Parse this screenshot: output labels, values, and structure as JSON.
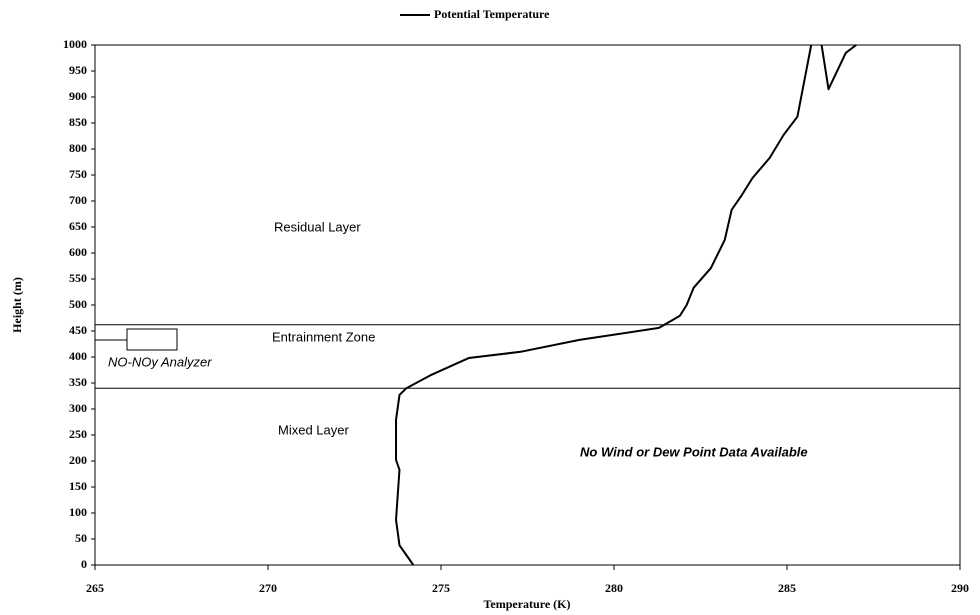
{
  "chart_data": {
    "type": "line",
    "legend": "Potential Temperature",
    "xlabel": "Temperature (K)",
    "ylabel": "Height (m)",
    "x": [
      274.2,
      273.8,
      273.7,
      273.8,
      273.7,
      273.7,
      273.8,
      274.0,
      274.7,
      275.8,
      277.3,
      279.0,
      281.3,
      281.9,
      282.1,
      282.3,
      282.8,
      283.2,
      283.4,
      283.7,
      284.0,
      284.5,
      284.9,
      285.3,
      285.7,
      285.8,
      286.0,
      286.2,
      286.7,
      287.0
    ],
    "series": [
      {
        "name": "Potential Temperature",
        "color": "#000000",
        "values": [
          0,
          38,
          87,
          183,
          202,
          279,
          327,
          340,
          365,
          398,
          410,
          433,
          456,
          479,
          500,
          533,
          571,
          625,
          683,
          712,
          744,
          783,
          827,
          862,
          1000,
          null,
          1000,
          915,
          985,
          1000
        ]
      }
    ],
    "layer_boundaries": [
      462,
      340
    ],
    "annotations": [
      "Residual Layer",
      "Entrainment Zone",
      "Mixed Layer",
      "NO-NOy Analyzer",
      "No Wind or Dew Point Data Available"
    ],
    "xlim": [
      265,
      290
    ],
    "xticks": [
      265,
      270,
      275,
      280,
      285,
      290
    ],
    "ylim": [
      0,
      1000
    ],
    "yticks": [
      0,
      50,
      100,
      150,
      200,
      250,
      300,
      350,
      400,
      450,
      500,
      550,
      600,
      650,
      700,
      750,
      800,
      850,
      900,
      950,
      1000
    ],
    "grid": false
  }
}
